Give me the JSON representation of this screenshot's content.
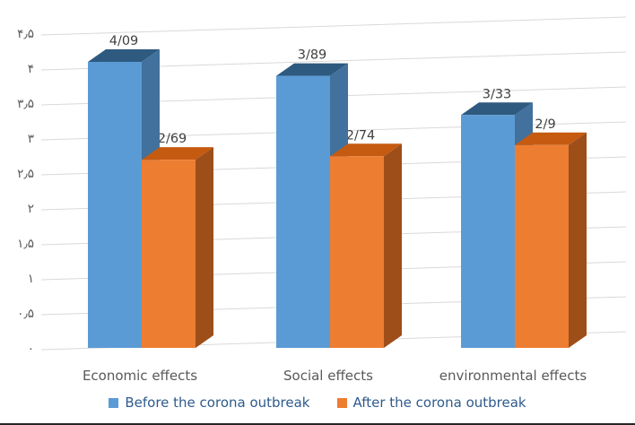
{
  "chart_data": {
    "type": "bar",
    "variant": "3d-clustered-column",
    "title": "",
    "categories": [
      "Economic effects",
      "Social effects",
      "environmental effects"
    ],
    "series": [
      {
        "name": "Before the corona outbreak",
        "values": [
          4.09,
          3.89,
          3.33
        ],
        "labels": [
          "4/09",
          "3/89",
          "3/33"
        ],
        "color": "#5B9BD5",
        "color_top": "#2E5A80",
        "color_side": "#41719C"
      },
      {
        "name": "After the corona outbreak",
        "values": [
          2.69,
          2.74,
          2.9
        ],
        "labels": [
          "2/69",
          "2/74",
          "2/9"
        ],
        "color": "#ED7D31",
        "color_top": "#C55A11",
        "color_side": "#9E4E19"
      }
    ],
    "y_axis": {
      "min": 0,
      "max": 4.5,
      "step": 0.5,
      "tick_labels": [
        "۰",
        "۰٫۵",
        "۱",
        "۱٫۵",
        "۲",
        "۲٫۵",
        "۳",
        "۳٫۵",
        "۴",
        "۴٫۵"
      ]
    },
    "grid": true,
    "legend_position": "bottom"
  },
  "styles": {
    "grid_color": "#D9D9D9",
    "axis_text": "#595959",
    "label_text": "#404040",
    "legend_text": "#2E5B8C",
    "background": "#FFFFFF",
    "bottom_border": "#262626"
  }
}
